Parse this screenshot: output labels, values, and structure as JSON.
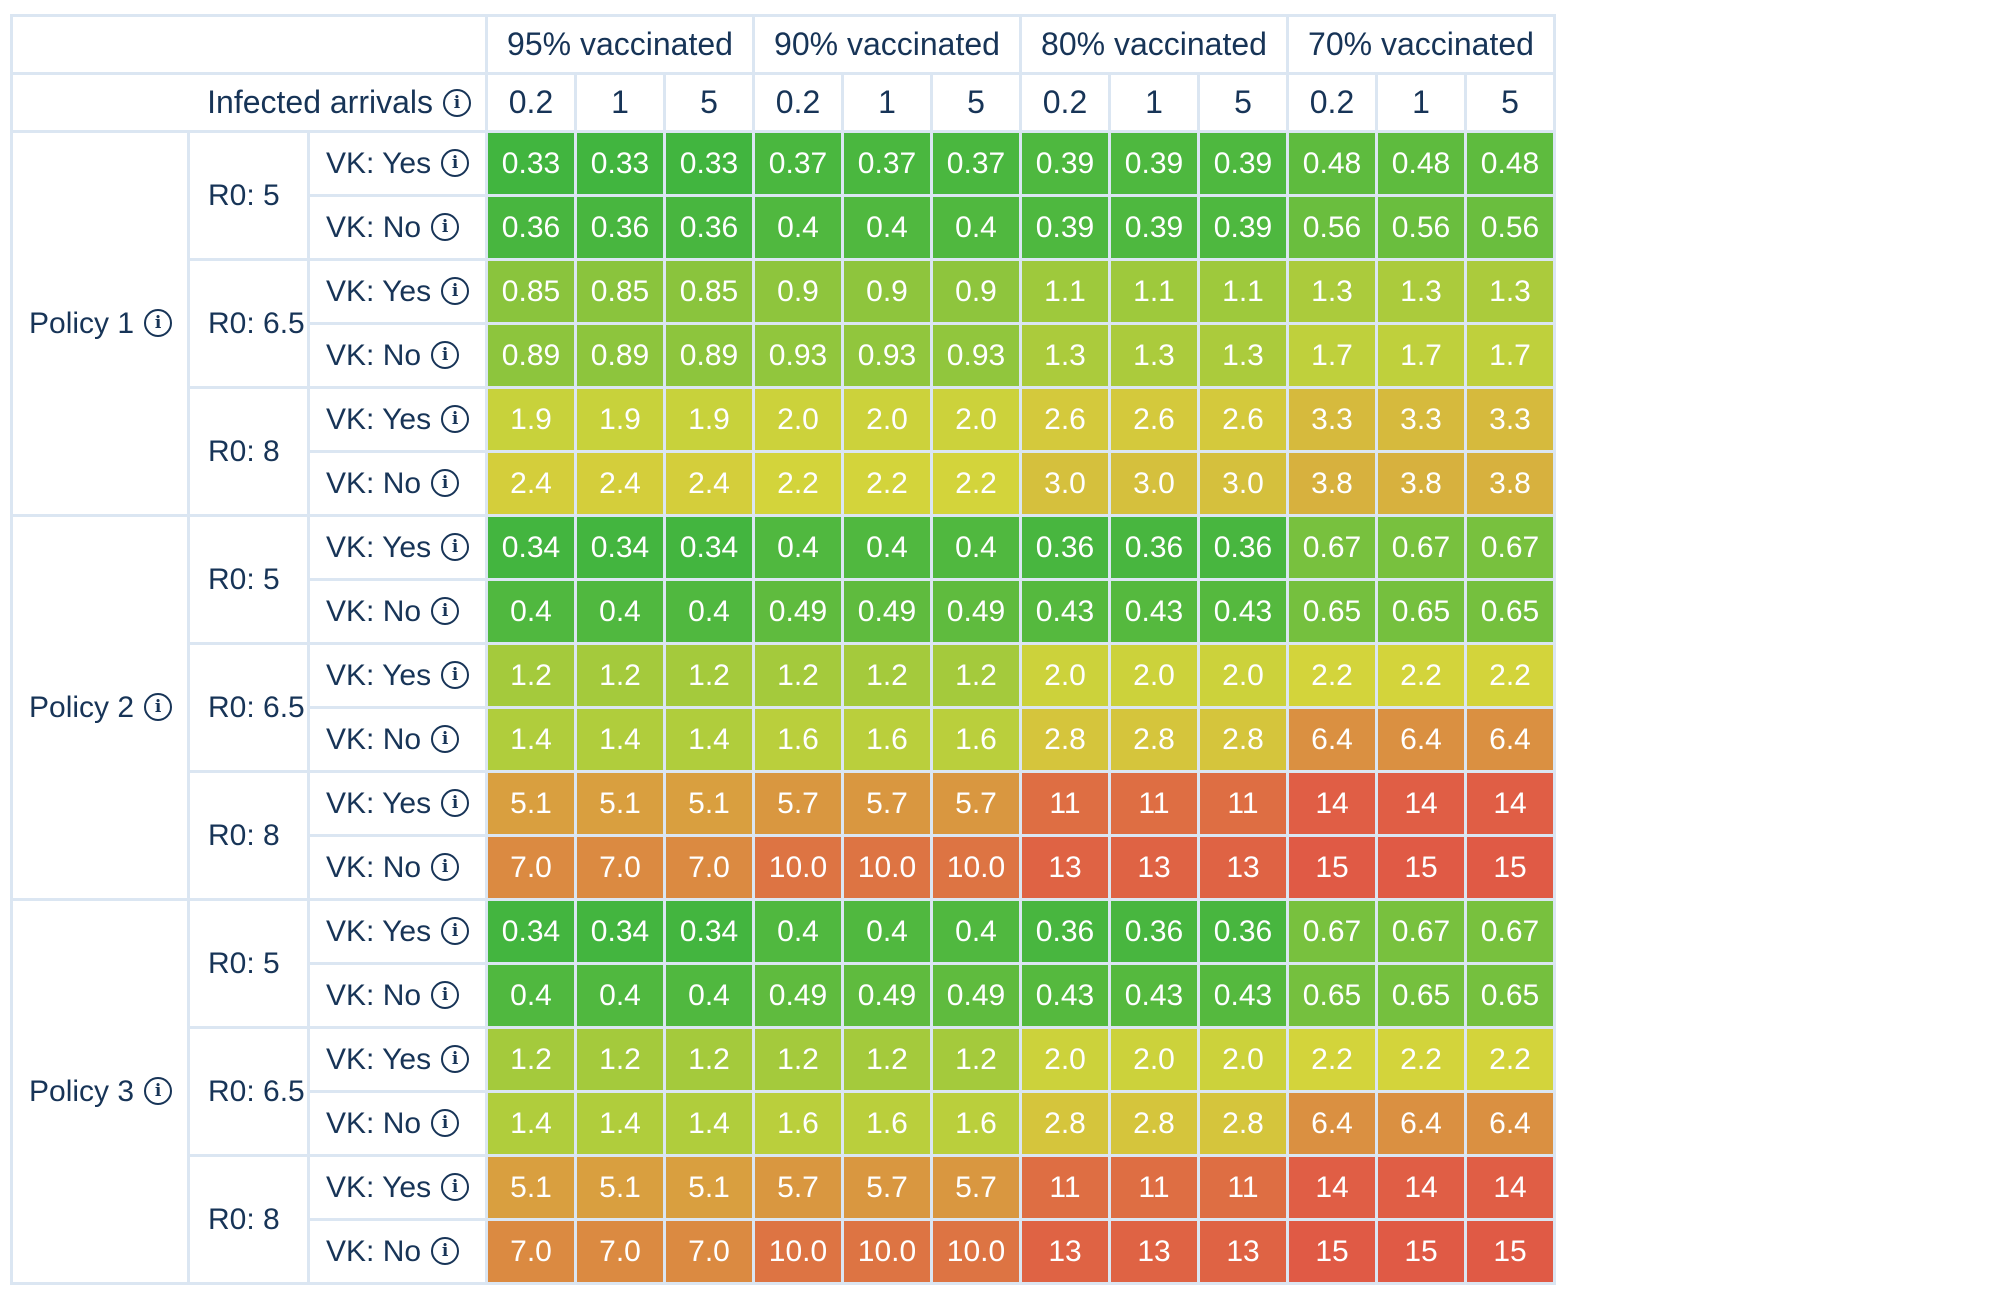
{
  "chart_data": {
    "type": "heatmap",
    "corner_label": "Infected arrivals",
    "column_groups": [
      "95% vaccinated",
      "90% vaccinated",
      "80% vaccinated",
      "70% vaccinated"
    ],
    "arrival_values": [
      "0.2",
      "1",
      "5"
    ],
    "policies": [
      {
        "label": "Policy 1",
        "r0_groups": [
          {
            "label": "R0: 5",
            "rows": [
              {
                "label": "VK: Yes",
                "values": [
                  "0.33",
                  "0.33",
                  "0.33",
                  "0.37",
                  "0.37",
                  "0.37",
                  "0.39",
                  "0.39",
                  "0.39",
                  "0.48",
                  "0.48",
                  "0.48"
                ]
              },
              {
                "label": "VK: No",
                "values": [
                  "0.36",
                  "0.36",
                  "0.36",
                  "0.4",
                  "0.4",
                  "0.4",
                  "0.39",
                  "0.39",
                  "0.39",
                  "0.56",
                  "0.56",
                  "0.56"
                ]
              }
            ]
          },
          {
            "label": "R0: 6.5",
            "rows": [
              {
                "label": "VK: Yes",
                "values": [
                  "0.85",
                  "0.85",
                  "0.85",
                  "0.9",
                  "0.9",
                  "0.9",
                  "1.1",
                  "1.1",
                  "1.1",
                  "1.3",
                  "1.3",
                  "1.3"
                ]
              },
              {
                "label": "VK: No",
                "values": [
                  "0.89",
                  "0.89",
                  "0.89",
                  "0.93",
                  "0.93",
                  "0.93",
                  "1.3",
                  "1.3",
                  "1.3",
                  "1.7",
                  "1.7",
                  "1.7"
                ]
              }
            ]
          },
          {
            "label": "R0: 8",
            "rows": [
              {
                "label": "VK: Yes",
                "values": [
                  "1.9",
                  "1.9",
                  "1.9",
                  "2.0",
                  "2.0",
                  "2.0",
                  "2.6",
                  "2.6",
                  "2.6",
                  "3.3",
                  "3.3",
                  "3.3"
                ]
              },
              {
                "label": "VK: No",
                "values": [
                  "2.4",
                  "2.4",
                  "2.4",
                  "2.2",
                  "2.2",
                  "2.2",
                  "3.0",
                  "3.0",
                  "3.0",
                  "3.8",
                  "3.8",
                  "3.8"
                ]
              }
            ]
          }
        ]
      },
      {
        "label": "Policy 2",
        "r0_groups": [
          {
            "label": "R0: 5",
            "rows": [
              {
                "label": "VK: Yes",
                "values": [
                  "0.34",
                  "0.34",
                  "0.34",
                  "0.4",
                  "0.4",
                  "0.4",
                  "0.36",
                  "0.36",
                  "0.36",
                  "0.67",
                  "0.67",
                  "0.67"
                ]
              },
              {
                "label": "VK: No",
                "values": [
                  "0.4",
                  "0.4",
                  "0.4",
                  "0.49",
                  "0.49",
                  "0.49",
                  "0.43",
                  "0.43",
                  "0.43",
                  "0.65",
                  "0.65",
                  "0.65"
                ]
              }
            ]
          },
          {
            "label": "R0: 6.5",
            "rows": [
              {
                "label": "VK: Yes",
                "values": [
                  "1.2",
                  "1.2",
                  "1.2",
                  "1.2",
                  "1.2",
                  "1.2",
                  "2.0",
                  "2.0",
                  "2.0",
                  "2.2",
                  "2.2",
                  "2.2"
                ]
              },
              {
                "label": "VK: No",
                "values": [
                  "1.4",
                  "1.4",
                  "1.4",
                  "1.6",
                  "1.6",
                  "1.6",
                  "2.8",
                  "2.8",
                  "2.8",
                  "6.4",
                  "6.4",
                  "6.4"
                ]
              }
            ]
          },
          {
            "label": "R0: 8",
            "rows": [
              {
                "label": "VK: Yes",
                "values": [
                  "5.1",
                  "5.1",
                  "5.1",
                  "5.7",
                  "5.7",
                  "5.7",
                  "11",
                  "11",
                  "11",
                  "14",
                  "14",
                  "14"
                ]
              },
              {
                "label": "VK: No",
                "values": [
                  "7.0",
                  "7.0",
                  "7.0",
                  "10.0",
                  "10.0",
                  "10.0",
                  "13",
                  "13",
                  "13",
                  "15",
                  "15",
                  "15"
                ]
              }
            ]
          }
        ]
      },
      {
        "label": "Policy 3",
        "r0_groups": [
          {
            "label": "R0: 5",
            "rows": [
              {
                "label": "VK: Yes",
                "values": [
                  "0.34",
                  "0.34",
                  "0.34",
                  "0.4",
                  "0.4",
                  "0.4",
                  "0.36",
                  "0.36",
                  "0.36",
                  "0.67",
                  "0.67",
                  "0.67"
                ]
              },
              {
                "label": "VK: No",
                "values": [
                  "0.4",
                  "0.4",
                  "0.4",
                  "0.49",
                  "0.49",
                  "0.49",
                  "0.43",
                  "0.43",
                  "0.43",
                  "0.65",
                  "0.65",
                  "0.65"
                ]
              }
            ]
          },
          {
            "label": "R0: 6.5",
            "rows": [
              {
                "label": "VK: Yes",
                "values": [
                  "1.2",
                  "1.2",
                  "1.2",
                  "1.2",
                  "1.2",
                  "1.2",
                  "2.0",
                  "2.0",
                  "2.0",
                  "2.2",
                  "2.2",
                  "2.2"
                ]
              },
              {
                "label": "VK: No",
                "values": [
                  "1.4",
                  "1.4",
                  "1.4",
                  "1.6",
                  "1.6",
                  "1.6",
                  "2.8",
                  "2.8",
                  "2.8",
                  "6.4",
                  "6.4",
                  "6.4"
                ]
              }
            ]
          },
          {
            "label": "R0: 8",
            "rows": [
              {
                "label": "VK: Yes",
                "values": [
                  "5.1",
                  "5.1",
                  "5.1",
                  "5.7",
                  "5.7",
                  "5.7",
                  "11",
                  "11",
                  "11",
                  "14",
                  "14",
                  "14"
                ]
              },
              {
                "label": "VK: No",
                "values": [
                  "7.0",
                  "7.0",
                  "7.0",
                  "10.0",
                  "10.0",
                  "10.0",
                  "13",
                  "13",
                  "13",
                  "15",
                  "15",
                  "15"
                ]
              }
            ]
          }
        ]
      }
    ],
    "color_scale": {
      "low_color": "#41b53f",
      "mid_color": "#d3d43b",
      "high_color": "#e05a45"
    }
  },
  "icons": {
    "info": "info-icon"
  },
  "info_glyph": "i"
}
